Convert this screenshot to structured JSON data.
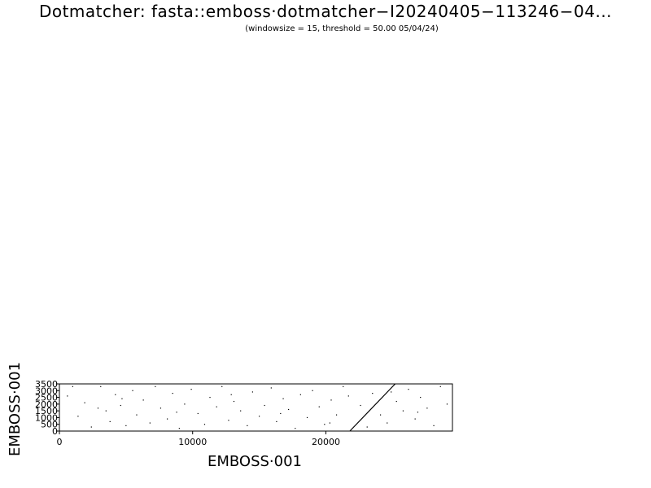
{
  "window_title": "",
  "chart_data": {
    "type": "scatter",
    "title": "Dotmatcher: fasta::emboss·dotmatcher−I20240405−113246−04...",
    "subtitle": "(windowsize = 15, threshold = 50.00  05/04/24)",
    "xlabel": "EMBOSS·001",
    "ylabel": "EMBOSS·001",
    "xlim": [
      0,
      29500
    ],
    "ylim": [
      0,
      3500
    ],
    "xticks": [
      0,
      10000,
      20000
    ],
    "yticks": [
      0,
      500,
      1000,
      1500,
      2000,
      2500,
      3000,
      3500
    ],
    "xtick_labels": [
      "0",
      "10000",
      "20000"
    ],
    "ytick_labels": [
      "0",
      "500",
      "1000",
      "1500",
      "2000",
      "2500",
      "3000",
      "3500"
    ],
    "grid": false,
    "diagonal_match": {
      "x": [
        21800,
        25200
      ],
      "y": [
        0,
        3500
      ]
    },
    "points": [
      [
        600,
        2600
      ],
      [
        1400,
        1100
      ],
      [
        1900,
        2100
      ],
      [
        2400,
        300
      ],
      [
        3100,
        3300
      ],
      [
        3500,
        1500
      ],
      [
        3800,
        700
      ],
      [
        4200,
        2700
      ],
      [
        4600,
        1900
      ],
      [
        5000,
        400
      ],
      [
        5500,
        3000
      ],
      [
        5800,
        1200
      ],
      [
        6300,
        2300
      ],
      [
        6800,
        600
      ],
      [
        7200,
        3300
      ],
      [
        7600,
        1700
      ],
      [
        8100,
        900
      ],
      [
        8500,
        2800
      ],
      [
        9000,
        200
      ],
      [
        9400,
        2000
      ],
      [
        9900,
        3100
      ],
      [
        10400,
        1300
      ],
      [
        10900,
        500
      ],
      [
        11300,
        2500
      ],
      [
        11800,
        1800
      ],
      [
        12200,
        3300
      ],
      [
        12700,
        800
      ],
      [
        13100,
        2200
      ],
      [
        13600,
        1500
      ],
      [
        14100,
        400
      ],
      [
        14500,
        2900
      ],
      [
        15000,
        1100
      ],
      [
        15400,
        1900
      ],
      [
        15900,
        3200
      ],
      [
        16300,
        700
      ],
      [
        16800,
        2400
      ],
      [
        17200,
        1600
      ],
      [
        17700,
        200
      ],
      [
        18100,
        2700
      ],
      [
        18600,
        1000
      ],
      [
        19000,
        3000
      ],
      [
        19500,
        1800
      ],
      [
        19900,
        500
      ],
      [
        20400,
        2300
      ],
      [
        20800,
        1200
      ],
      [
        21300,
        3300
      ],
      [
        21700,
        2600
      ],
      [
        22600,
        1900
      ],
      [
        23100,
        300
      ],
      [
        23500,
        2800
      ],
      [
        24100,
        1200
      ],
      [
        24600,
        600
      ],
      [
        25300,
        2200
      ],
      [
        25800,
        1500
      ],
      [
        26200,
        3100
      ],
      [
        26700,
        900
      ],
      [
        27100,
        2500
      ],
      [
        27600,
        1700
      ],
      [
        28100,
        400
      ],
      [
        28600,
        3300
      ],
      [
        29100,
        2000
      ],
      [
        1000,
        3300
      ],
      [
        2900,
        1700
      ],
      [
        8800,
        1400
      ],
      [
        12900,
        2700
      ],
      [
        16600,
        1300
      ],
      [
        20300,
        600
      ],
      [
        24900,
        2900
      ],
      [
        26900,
        1400
      ],
      [
        4700,
        2400
      ]
    ]
  }
}
